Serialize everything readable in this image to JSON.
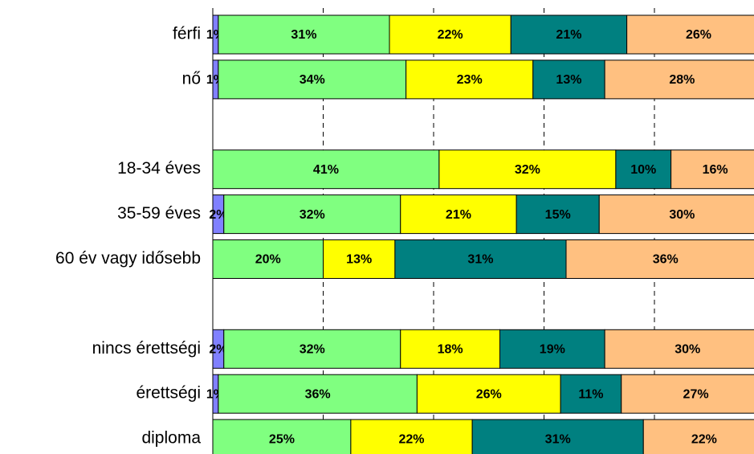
{
  "chart_data": {
    "type": "stacked_barh",
    "categories": [
      "férfi",
      "nő",
      null,
      "18-34 éves",
      "35-59 éves",
      "60 év vagy idősebb",
      null,
      "nincs érettségi",
      "érettségi",
      "diploma"
    ],
    "series": [
      {
        "color": "#8080ff",
        "values": [
          1,
          1,
          null,
          null,
          2,
          null,
          null,
          2,
          1,
          null
        ],
        "value_labels": [
          "1%",
          "1%",
          null,
          null,
          "2%",
          null,
          null,
          "2%",
          "1%",
          null
        ]
      },
      {
        "color": "#80ff80",
        "values": [
          31,
          34,
          null,
          41,
          32,
          20,
          null,
          32,
          36,
          25
        ],
        "value_labels": [
          "31%",
          "34%",
          null,
          "41%",
          "32%",
          "20%",
          null,
          "32%",
          "36%",
          "25%"
        ]
      },
      {
        "color": "#ffff00",
        "values": [
          22,
          23,
          null,
          32,
          21,
          13,
          null,
          18,
          26,
          22
        ],
        "value_labels": [
          "22%",
          "23%",
          null,
          "32%",
          "21%",
          "13%",
          null,
          "18%",
          "26%",
          "22%"
        ]
      },
      {
        "color": "#008080",
        "values": [
          21,
          13,
          null,
          10,
          15,
          31,
          null,
          19,
          11,
          31
        ],
        "value_labels": [
          "21%",
          "13%",
          null,
          "10%",
          "15%",
          "31%",
          null,
          "19%",
          "11%",
          "31%"
        ]
      },
      {
        "color": "#ffc080",
        "values": [
          26,
          28,
          null,
          16,
          30,
          36,
          null,
          30,
          27,
          22
        ],
        "value_labels": [
          "26%",
          "28%",
          null,
          "16%",
          "30%",
          "36%",
          null,
          "30%",
          "27%",
          "22%"
        ]
      }
    ],
    "xlim": [
      0,
      100
    ],
    "xticks": [
      20,
      40,
      60,
      80
    ],
    "grid": true
  }
}
